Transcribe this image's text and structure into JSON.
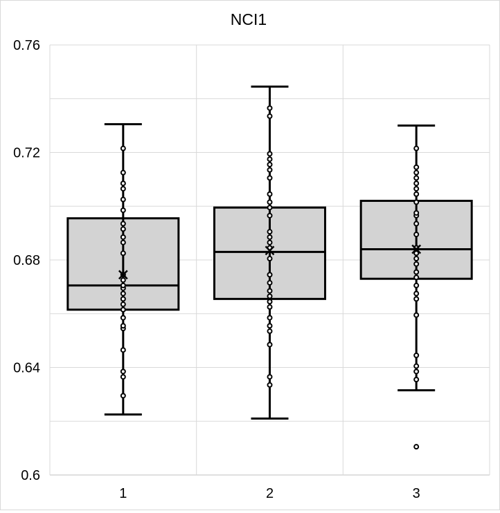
{
  "chart_data": {
    "type": "box",
    "title": "NCI1",
    "xlabel": "",
    "ylabel": "",
    "categories": [
      "1",
      "2",
      "3"
    ],
    "ylim": [
      0.6,
      0.76
    ],
    "yticks": [
      0.6,
      0.64,
      0.68,
      0.72,
      0.76
    ],
    "ytick_labels": [
      "0.6",
      "0.64",
      "0.68",
      "0.72",
      "0.76"
    ],
    "grid": true,
    "colors": {
      "box_fill": "#d3d3d3",
      "line": "#000000",
      "grid": "#d9d9d9"
    },
    "series": [
      {
        "category": "1",
        "min": 0.6225,
        "q1": 0.6615,
        "median": 0.6705,
        "q3": 0.6955,
        "max": 0.7305,
        "mean": 0.6745,
        "points": [
          0.6295,
          0.6365,
          0.6385,
          0.6465,
          0.6545,
          0.6555,
          0.6585,
          0.6615,
          0.6635,
          0.6655,
          0.6675,
          0.6695,
          0.6705,
          0.6725,
          0.6745,
          0.6825,
          0.6865,
          0.6885,
          0.6915,
          0.6935,
          0.6985,
          0.7025,
          0.7065,
          0.7085,
          0.7125,
          0.7215
        ],
        "outliers": []
      },
      {
        "category": "2",
        "min": 0.621,
        "q1": 0.6655,
        "median": 0.683,
        "q3": 0.6995,
        "max": 0.7445,
        "mean": 0.6835,
        "points": [
          0.6335,
          0.6365,
          0.6485,
          0.6535,
          0.6555,
          0.6585,
          0.6625,
          0.6645,
          0.6665,
          0.6685,
          0.6715,
          0.6745,
          0.6805,
          0.6845,
          0.6865,
          0.6885,
          0.6905,
          0.6965,
          0.6995,
          0.7015,
          0.7045,
          0.7105,
          0.7135,
          0.7155,
          0.7175,
          0.7195,
          0.7335,
          0.7365
        ],
        "outliers": []
      },
      {
        "category": "3",
        "min": 0.6315,
        "q1": 0.673,
        "median": 0.684,
        "q3": 0.702,
        "max": 0.73,
        "mean": 0.684,
        "points": [
          0.6355,
          0.6385,
          0.6405,
          0.6445,
          0.6595,
          0.6655,
          0.6675,
          0.6705,
          0.6735,
          0.6755,
          0.6785,
          0.6805,
          0.6825,
          0.6845,
          0.6895,
          0.6935,
          0.6965,
          0.6975,
          0.7015,
          0.7045,
          0.7065,
          0.7085,
          0.7105,
          0.7125,
          0.7145,
          0.7215
        ],
        "outliers": [
          0.6105
        ]
      }
    ]
  }
}
